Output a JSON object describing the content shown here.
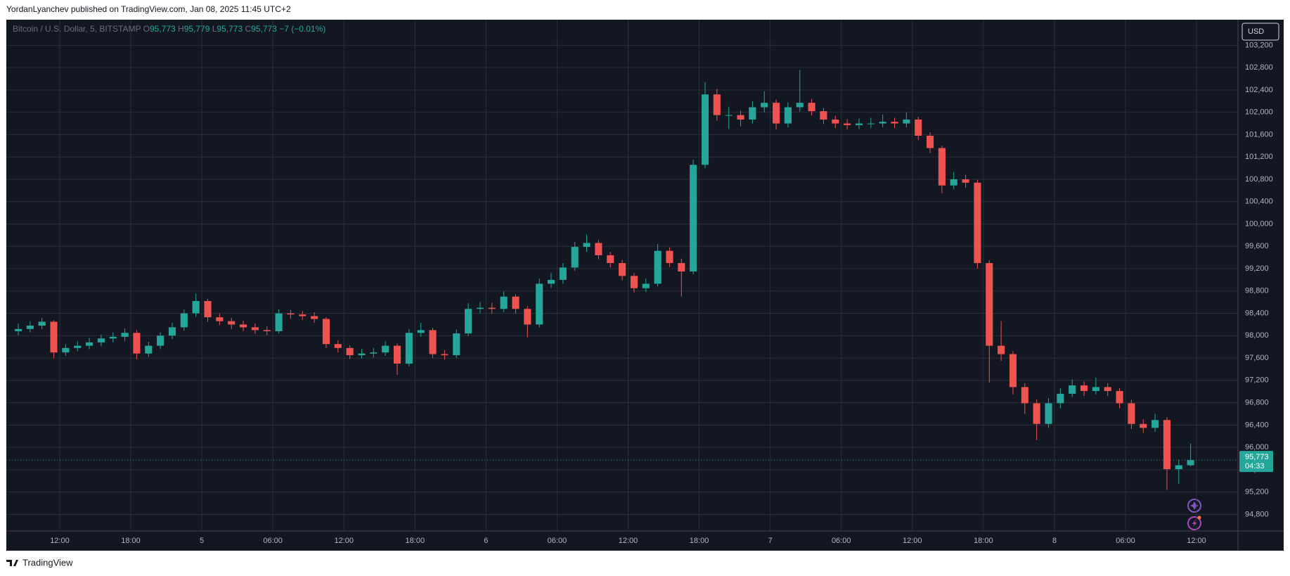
{
  "header": {
    "published": "YordanLyanchev published on TradingView.com, Jan 08, 2025 11:45 UTC+2"
  },
  "chart_data": {
    "type": "candlestick",
    "symbol": "Bitcoin / U.S. Dollar, 5, BITSTAMP",
    "ohlc_legend": [
      {
        "key": "O",
        "value": "95,773"
      },
      {
        "key": "H",
        "value": "95,779"
      },
      {
        "key": "L",
        "value": "95,773"
      },
      {
        "key": "C",
        "value": "95,773"
      }
    ],
    "change": "−7 (−0.01%)",
    "currency": "USD",
    "open": [
      98080,
      98120,
      98180,
      98250,
      97700,
      97780,
      97820,
      97880,
      97950,
      97980,
      98050,
      97680,
      97820,
      98000,
      98150,
      98400,
      98620,
      98330,
      98260,
      98200,
      98150,
      98100,
      98080,
      98400,
      98380,
      98350,
      98300,
      97850,
      97780,
      97650,
      97680,
      97700,
      97820,
      97500,
      98050,
      98100,
      97670,
      97650,
      98040,
      98480,
      98500,
      98480,
      98700,
      98480,
      98200,
      98930,
      99000,
      99220,
      99590,
      99660,
      99440,
      99300,
      99070,
      98850,
      98930,
      99520,
      99300,
      99150,
      101060,
      102320,
      101950,
      101950,
      101870,
      102090,
      102170,
      101800,
      102090,
      102170,
      102020,
      101870,
      101800,
      101770,
      101800,
      101800,
      101830,
      101800,
      101870,
      101580,
      101360,
      100690,
      100800,
      100740,
      99300,
      97820,
      97670,
      97080,
      96790,
      96420,
      96790,
      96960,
      97110,
      97010,
      97080,
      97010,
      96790,
      96420,
      96350,
      96490,
      95610,
      95680
    ],
    "high": [
      98220,
      98260,
      98320,
      98280,
      97850,
      97900,
      97960,
      98020,
      98060,
      98130,
      98100,
      97890,
      98060,
      98230,
      98470,
      98750,
      98660,
      98400,
      98320,
      98270,
      98220,
      98170,
      98470,
      98460,
      98440,
      98420,
      98330,
      97920,
      97830,
      97760,
      97780,
      97900,
      97860,
      98120,
      98230,
      98140,
      97740,
      98110,
      98580,
      98600,
      98590,
      98790,
      98740,
      98530,
      99020,
      99120,
      99300,
      99680,
      99810,
      99710,
      99500,
      99360,
      99120,
      99020,
      99640,
      99580,
      99380,
      101150,
      102540,
      102420,
      102100,
      102030,
      102200,
      102380,
      102230,
      102180,
      102760,
      102240,
      102080,
      101940,
      101880,
      101890,
      101900,
      101960,
      101900,
      102000,
      101920,
      101640,
      101400,
      100930,
      100880,
      100790,
      99350,
      98260,
      97720,
      97150,
      96860,
      96880,
      97060,
      97220,
      97180,
      97250,
      97150,
      97060,
      96850,
      96500,
      96600,
      96540,
      95780,
      96070
    ],
    "low": [
      98010,
      98060,
      98120,
      97600,
      97640,
      97720,
      97760,
      97810,
      97880,
      97900,
      97580,
      97620,
      97760,
      97940,
      98090,
      98340,
      98250,
      98190,
      98120,
      98080,
      98030,
      98010,
      98040,
      98300,
      98280,
      98230,
      97780,
      97700,
      97580,
      97590,
      97610,
      97640,
      97300,
      97450,
      97980,
      97600,
      97570,
      97600,
      97990,
      98400,
      98390,
      98420,
      98400,
      97970,
      98150,
      98850,
      98930,
      99160,
      99500,
      99370,
      99220,
      98990,
      98770,
      98780,
      98880,
      99230,
      98700,
      99100,
      101000,
      101850,
      101700,
      101750,
      101800,
      102000,
      101690,
      101730,
      102010,
      101940,
      101790,
      101720,
      101690,
      101700,
      101720,
      101730,
      101720,
      101730,
      101500,
      101270,
      100550,
      100620,
      100650,
      99200,
      97160,
      97550,
      96950,
      96600,
      96130,
      96350,
      96700,
      96900,
      96920,
      96950,
      96920,
      96700,
      96330,
      96260,
      96280,
      95240,
      95350,
      95660
    ],
    "close": [
      98120,
      98180,
      98250,
      97700,
      97780,
      97820,
      97880,
      97950,
      97980,
      98050,
      97680,
      97820,
      98000,
      98150,
      98400,
      98620,
      98330,
      98260,
      98200,
      98150,
      98100,
      98080,
      98400,
      98380,
      98350,
      98300,
      97850,
      97780,
      97650,
      97680,
      97700,
      97820,
      97500,
      98050,
      98100,
      97670,
      97650,
      98040,
      98480,
      98500,
      98480,
      98700,
      98480,
      98200,
      98930,
      99000,
      99220,
      99590,
      99660,
      99440,
      99300,
      99070,
      98850,
      98930,
      99520,
      99300,
      99150,
      101060,
      102320,
      101950,
      101950,
      101870,
      102090,
      102170,
      101800,
      102090,
      102170,
      102020,
      101870,
      101800,
      101770,
      101800,
      101800,
      101830,
      101800,
      101870,
      101580,
      101360,
      100690,
      100800,
      100740,
      99300,
      97820,
      97670,
      97080,
      96790,
      96420,
      96790,
      96960,
      97110,
      97010,
      97080,
      97010,
      96790,
      96420,
      96350,
      96490,
      95610,
      95680,
      95773
    ],
    "up_color": "#26a69a",
    "down_color": "#ef5350",
    "xlim": [
      -0.45,
      103.5
    ],
    "xticks": [
      {
        "value": 4,
        "label": "12:00"
      },
      {
        "value": 10,
        "label": "18:00"
      },
      {
        "value": 16,
        "label": "5"
      },
      {
        "value": 22,
        "label": "06:00"
      },
      {
        "value": 28,
        "label": "12:00"
      },
      {
        "value": 34,
        "label": "18:00"
      },
      {
        "value": 40,
        "label": "6"
      },
      {
        "value": 46,
        "label": "06:00"
      },
      {
        "value": 52,
        "label": "12:00"
      },
      {
        "value": 58,
        "label": "18:00"
      },
      {
        "value": 64,
        "label": "7"
      },
      {
        "value": 70,
        "label": "06:00"
      },
      {
        "value": 76,
        "label": "12:00"
      },
      {
        "value": 82,
        "label": "18:00"
      },
      {
        "value": 88,
        "label": "8"
      },
      {
        "value": 94,
        "label": "06:00"
      },
      {
        "value": 100,
        "label": "12:00"
      }
    ],
    "ylim": [
      94503,
      103658
    ],
    "yticks": [
      {
        "value": 94800,
        "label": "94,800"
      },
      {
        "value": 95200,
        "label": "95,200"
      },
      {
        "value": 95600,
        "label": "95,600"
      },
      {
        "value": 96000,
        "label": "96,000"
      },
      {
        "value": 96400,
        "label": "96,400"
      },
      {
        "value": 96800,
        "label": "96,800"
      },
      {
        "value": 97200,
        "label": "97,200"
      },
      {
        "value": 97600,
        "label": "97,600"
      },
      {
        "value": 98000,
        "label": "98,000"
      },
      {
        "value": 98400,
        "label": "98,400"
      },
      {
        "value": 98800,
        "label": "98,800"
      },
      {
        "value": 99200,
        "label": "99,200"
      },
      {
        "value": 99600,
        "label": "99,600"
      },
      {
        "value": 100000,
        "label": "100,000"
      },
      {
        "value": 100400,
        "label": "100,400"
      },
      {
        "value": 100800,
        "label": "100,800"
      },
      {
        "value": 101200,
        "label": "101,200"
      },
      {
        "value": 101600,
        "label": "101,600"
      },
      {
        "value": 102000,
        "label": "102,000"
      },
      {
        "value": 102400,
        "label": "102,400"
      },
      {
        "value": 102800,
        "label": "102,800"
      },
      {
        "value": 103200,
        "label": "103,200"
      }
    ],
    "grid": true,
    "last_price_label": "95,773",
    "countdown": "04:33"
  },
  "footer": {
    "brand": "TradingView"
  }
}
